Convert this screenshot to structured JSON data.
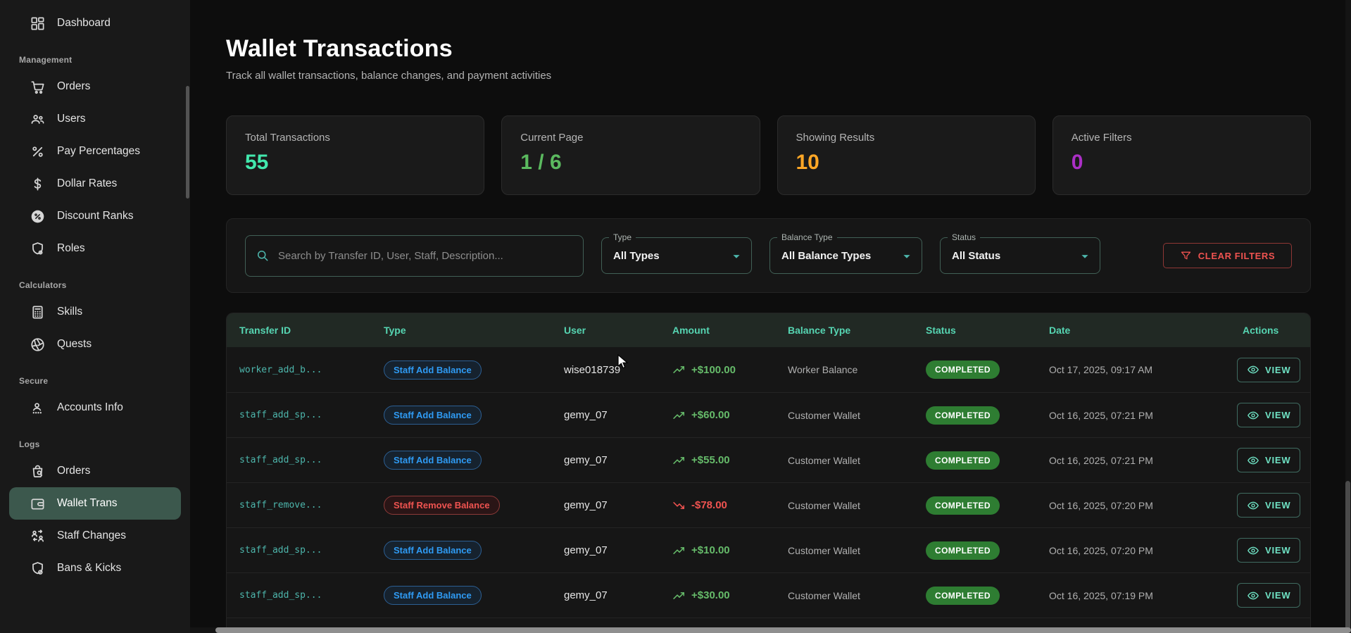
{
  "sidebar": {
    "sections": [
      {
        "title": "",
        "items": [
          {
            "label": "Dashboard",
            "icon": "dashboard-icon",
            "active": false
          }
        ]
      },
      {
        "title": "Management",
        "items": [
          {
            "label": "Orders",
            "icon": "cart-icon",
            "active": false
          },
          {
            "label": "Users",
            "icon": "users-icon",
            "active": false
          },
          {
            "label": "Pay Percentages",
            "icon": "percent-icon",
            "active": false
          },
          {
            "label": "Dollar Rates",
            "icon": "dollar-icon",
            "active": false
          },
          {
            "label": "Discount Ranks",
            "icon": "discount-badge-icon",
            "active": false
          },
          {
            "label": "Roles",
            "icon": "shield-icon",
            "active": false
          }
        ]
      },
      {
        "title": "Calculators",
        "items": [
          {
            "label": "Skills",
            "icon": "calculator-icon",
            "active": false
          },
          {
            "label": "Quests",
            "icon": "aperture-icon",
            "active": false
          }
        ]
      },
      {
        "title": "Secure",
        "items": [
          {
            "label": "Accounts Info",
            "icon": "account-password-icon",
            "active": false
          }
        ]
      },
      {
        "title": "Logs",
        "items": [
          {
            "label": "Orders",
            "icon": "bag-search-icon",
            "active": false
          },
          {
            "label": "Wallet Trans",
            "icon": "wallet-icon",
            "active": true
          },
          {
            "label": "Staff Changes",
            "icon": "people-swap-icon",
            "active": false
          },
          {
            "label": "Bans & Kicks",
            "icon": "shield-ban-icon",
            "active": false
          }
        ]
      }
    ]
  },
  "header": {
    "title": "Wallet Transactions",
    "subtitle": "Track all wallet transactions, balance changes, and payment activities"
  },
  "stats": [
    {
      "label": "Total Transactions",
      "value": "55",
      "color": "#42e8ad"
    },
    {
      "label": "Current Page",
      "value": "1 / 6",
      "color": "#5bba5f"
    },
    {
      "label": "Showing Results",
      "value": "10",
      "color": "#ffa726"
    },
    {
      "label": "Active Filters",
      "value": "0",
      "color": "#ab2fc6"
    }
  ],
  "filters": {
    "search_placeholder": "Search by Transfer ID, User, Staff, Description...",
    "selects": [
      {
        "label": "Type",
        "value": "All Types",
        "width_class": "w-type"
      },
      {
        "label": "Balance Type",
        "value": "All Balance Types",
        "width_class": "w-bal"
      },
      {
        "label": "Status",
        "value": "All Status",
        "width_class": "w-status"
      }
    ],
    "clear_button": "CLEAR FILTERS"
  },
  "table": {
    "columns": [
      "Transfer ID",
      "Type",
      "User",
      "Amount",
      "Balance Type",
      "Status",
      "Date",
      "Actions"
    ],
    "view_label": "VIEW",
    "rows": [
      {
        "transfer_id": "worker_add_b...",
        "type": "Staff Add Balance",
        "type_variant": "add",
        "user": "wise018739",
        "amount": "+$100.00",
        "direction": "up",
        "balance_type": "Worker Balance",
        "status": "COMPLETED",
        "date": "Oct 17, 2025, 09:17 AM"
      },
      {
        "transfer_id": "staff_add_sp...",
        "type": "Staff Add Balance",
        "type_variant": "add",
        "user": "gemy_07",
        "amount": "+$60.00",
        "direction": "up",
        "balance_type": "Customer Wallet",
        "status": "COMPLETED",
        "date": "Oct 16, 2025, 07:21 PM"
      },
      {
        "transfer_id": "staff_add_sp...",
        "type": "Staff Add Balance",
        "type_variant": "add",
        "user": "gemy_07",
        "amount": "+$55.00",
        "direction": "up",
        "balance_type": "Customer Wallet",
        "status": "COMPLETED",
        "date": "Oct 16, 2025, 07:21 PM"
      },
      {
        "transfer_id": "staff_remove...",
        "type": "Staff Remove Balance",
        "type_variant": "remove",
        "user": "gemy_07",
        "amount": "-$78.00",
        "direction": "down",
        "balance_type": "Customer Wallet",
        "status": "COMPLETED",
        "date": "Oct 16, 2025, 07:20 PM"
      },
      {
        "transfer_id": "staff_add_sp...",
        "type": "Staff Add Balance",
        "type_variant": "add",
        "user": "gemy_07",
        "amount": "+$10.00",
        "direction": "up",
        "balance_type": "Customer Wallet",
        "status": "COMPLETED",
        "date": "Oct 16, 2025, 07:20 PM"
      },
      {
        "transfer_id": "staff_add_sp...",
        "type": "Staff Add Balance",
        "type_variant": "add",
        "user": "gemy_07",
        "amount": "+$30.00",
        "direction": "up",
        "balance_type": "Customer Wallet",
        "status": "COMPLETED",
        "date": "Oct 16, 2025, 07:19 PM"
      }
    ]
  },
  "colors": {
    "accent_teal": "#4db6ac",
    "table_header_text": "#56d5b2",
    "amount_positive": "#66bb6a",
    "amount_negative": "#ef5350",
    "status_completed_bg": "#2e7d32",
    "active_sidebar_bg": "#3c584d",
    "clear_filters_red": "#ef5350",
    "type_add_blue": "#2f9bf4"
  }
}
